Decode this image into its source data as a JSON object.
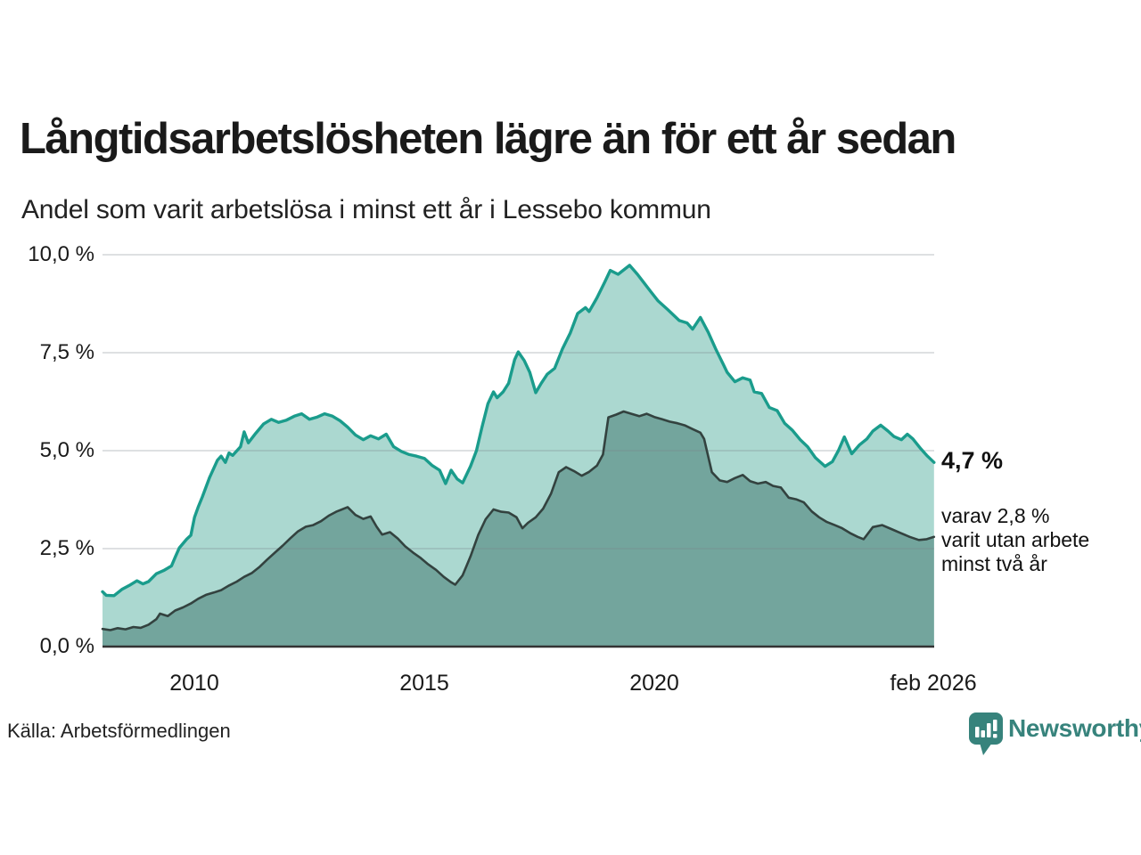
{
  "chart_data": {
    "type": "area",
    "title": "Långtidsarbetslösheten lägre än för ett år sedan",
    "subtitle": "Andel som varit arbetslösa i minst ett år i Lessebo kommun",
    "unit": "%",
    "grid_on": true,
    "grid_color": "#7d848c",
    "axis_color": "#333333",
    "x_axis": {
      "range": [
        2008.0,
        2026.083
      ],
      "ticks": [
        {
          "year": 2010,
          "label": "2010"
        },
        {
          "year": 2015,
          "label": "2015"
        },
        {
          "year": 2020,
          "label": "2020"
        },
        {
          "year": 2026.08,
          "label": "feb 2026"
        }
      ]
    },
    "y_axis": {
      "range": [
        0,
        10
      ],
      "ticks": [
        {
          "value": 10,
          "label": "10,0 %"
        },
        {
          "value": 7.5,
          "label": "7,5 %"
        },
        {
          "value": 5,
          "label": "5,0 %"
        },
        {
          "value": 2.5,
          "label": "2,5 %"
        },
        {
          "value": 0,
          "label": "0,0 %"
        }
      ]
    },
    "series": [
      {
        "name": "Arbetslösa minst ett år",
        "line_color": "#1a9c8c",
        "fill_color": "#abd8d0",
        "end_value": 4.7,
        "end_label": "4,7 %",
        "points": [
          [
            2008.0,
            1.4
          ],
          [
            2008.08,
            1.31
          ],
          [
            2008.25,
            1.3
          ],
          [
            2008.42,
            1.46
          ],
          [
            2008.58,
            1.56
          ],
          [
            2008.75,
            1.68
          ],
          [
            2008.88,
            1.6
          ],
          [
            2009.0,
            1.66
          ],
          [
            2009.17,
            1.86
          ],
          [
            2009.33,
            1.94
          ],
          [
            2009.5,
            2.06
          ],
          [
            2009.58,
            2.28
          ],
          [
            2009.67,
            2.52
          ],
          [
            2009.83,
            2.74
          ],
          [
            2009.92,
            2.84
          ],
          [
            2010.0,
            3.3
          ],
          [
            2010.08,
            3.56
          ],
          [
            2010.17,
            3.82
          ],
          [
            2010.33,
            4.32
          ],
          [
            2010.5,
            4.76
          ],
          [
            2010.58,
            4.86
          ],
          [
            2010.67,
            4.7
          ],
          [
            2010.75,
            4.94
          ],
          [
            2010.83,
            4.88
          ],
          [
            2011.0,
            5.1
          ],
          [
            2011.08,
            5.48
          ],
          [
            2011.17,
            5.2
          ],
          [
            2011.33,
            5.44
          ],
          [
            2011.5,
            5.68
          ],
          [
            2011.67,
            5.8
          ],
          [
            2011.83,
            5.72
          ],
          [
            2012.0,
            5.78
          ],
          [
            2012.17,
            5.88
          ],
          [
            2012.33,
            5.94
          ],
          [
            2012.5,
            5.8
          ],
          [
            2012.67,
            5.86
          ],
          [
            2012.83,
            5.94
          ],
          [
            2013.0,
            5.88
          ],
          [
            2013.17,
            5.76
          ],
          [
            2013.33,
            5.6
          ],
          [
            2013.5,
            5.4
          ],
          [
            2013.67,
            5.28
          ],
          [
            2013.83,
            5.38
          ],
          [
            2014.0,
            5.3
          ],
          [
            2014.17,
            5.42
          ],
          [
            2014.33,
            5.1
          ],
          [
            2014.5,
            4.98
          ],
          [
            2014.67,
            4.9
          ],
          [
            2014.83,
            4.86
          ],
          [
            2015.0,
            4.8
          ],
          [
            2015.17,
            4.62
          ],
          [
            2015.33,
            4.5
          ],
          [
            2015.46,
            4.16
          ],
          [
            2015.58,
            4.5
          ],
          [
            2015.71,
            4.28
          ],
          [
            2015.83,
            4.18
          ],
          [
            2016.0,
            4.6
          ],
          [
            2016.13,
            5.0
          ],
          [
            2016.25,
            5.6
          ],
          [
            2016.38,
            6.2
          ],
          [
            2016.5,
            6.5
          ],
          [
            2016.58,
            6.35
          ],
          [
            2016.71,
            6.5
          ],
          [
            2016.83,
            6.72
          ],
          [
            2016.96,
            7.32
          ],
          [
            2017.04,
            7.52
          ],
          [
            2017.17,
            7.3
          ],
          [
            2017.29,
            7.0
          ],
          [
            2017.42,
            6.48
          ],
          [
            2017.54,
            6.72
          ],
          [
            2017.67,
            6.95
          ],
          [
            2017.83,
            7.1
          ],
          [
            2018.0,
            7.6
          ],
          [
            2018.17,
            8.0
          ],
          [
            2018.33,
            8.5
          ],
          [
            2018.5,
            8.65
          ],
          [
            2018.58,
            8.55
          ],
          [
            2018.75,
            8.9
          ],
          [
            2018.92,
            9.3
          ],
          [
            2019.04,
            9.6
          ],
          [
            2019.21,
            9.5
          ],
          [
            2019.46,
            9.73
          ],
          [
            2019.63,
            9.5
          ],
          [
            2019.75,
            9.32
          ],
          [
            2019.92,
            9.06
          ],
          [
            2020.08,
            8.82
          ],
          [
            2020.29,
            8.6
          ],
          [
            2020.54,
            8.32
          ],
          [
            2020.71,
            8.26
          ],
          [
            2020.83,
            8.1
          ],
          [
            2021.0,
            8.4
          ],
          [
            2021.17,
            8.02
          ],
          [
            2021.33,
            7.6
          ],
          [
            2021.5,
            7.2
          ],
          [
            2021.58,
            7.0
          ],
          [
            2021.75,
            6.76
          ],
          [
            2021.92,
            6.86
          ],
          [
            2022.08,
            6.8
          ],
          [
            2022.17,
            6.5
          ],
          [
            2022.33,
            6.46
          ],
          [
            2022.5,
            6.1
          ],
          [
            2022.67,
            6.02
          ],
          [
            2022.83,
            5.7
          ],
          [
            2023.0,
            5.52
          ],
          [
            2023.17,
            5.28
          ],
          [
            2023.33,
            5.1
          ],
          [
            2023.5,
            4.82
          ],
          [
            2023.71,
            4.6
          ],
          [
            2023.87,
            4.72
          ],
          [
            2024.0,
            5.0
          ],
          [
            2024.13,
            5.35
          ],
          [
            2024.29,
            4.92
          ],
          [
            2024.46,
            5.15
          ],
          [
            2024.62,
            5.3
          ],
          [
            2024.75,
            5.5
          ],
          [
            2024.92,
            5.65
          ],
          [
            2025.08,
            5.5
          ],
          [
            2025.21,
            5.36
          ],
          [
            2025.37,
            5.28
          ],
          [
            2025.5,
            5.42
          ],
          [
            2025.62,
            5.3
          ],
          [
            2025.79,
            5.05
          ],
          [
            2025.92,
            4.88
          ],
          [
            2026.08,
            4.7
          ]
        ]
      },
      {
        "name": "Arbetslösa minst två år",
        "line_color": "#33423f",
        "fill_color": "#73a59d",
        "end_value": 2.8,
        "annotation_lines": [
          "varav 2,8 %",
          "varit utan arbete",
          "minst två år"
        ],
        "points": [
          [
            2008.0,
            0.45
          ],
          [
            2008.17,
            0.42
          ],
          [
            2008.33,
            0.47
          ],
          [
            2008.5,
            0.44
          ],
          [
            2008.67,
            0.5
          ],
          [
            2008.83,
            0.48
          ],
          [
            2009.0,
            0.56
          ],
          [
            2009.17,
            0.7
          ],
          [
            2009.25,
            0.84
          ],
          [
            2009.42,
            0.78
          ],
          [
            2009.58,
            0.92
          ],
          [
            2009.75,
            1.0
          ],
          [
            2009.92,
            1.1
          ],
          [
            2010.08,
            1.22
          ],
          [
            2010.25,
            1.32
          ],
          [
            2010.42,
            1.38
          ],
          [
            2010.58,
            1.44
          ],
          [
            2010.75,
            1.56
          ],
          [
            2010.92,
            1.66
          ],
          [
            2011.08,
            1.78
          ],
          [
            2011.25,
            1.88
          ],
          [
            2011.42,
            2.04
          ],
          [
            2011.58,
            2.22
          ],
          [
            2011.75,
            2.4
          ],
          [
            2011.92,
            2.58
          ],
          [
            2012.08,
            2.76
          ],
          [
            2012.25,
            2.94
          ],
          [
            2012.42,
            3.06
          ],
          [
            2012.58,
            3.1
          ],
          [
            2012.75,
            3.2
          ],
          [
            2012.92,
            3.34
          ],
          [
            2013.08,
            3.44
          ],
          [
            2013.25,
            3.52
          ],
          [
            2013.33,
            3.56
          ],
          [
            2013.5,
            3.36
          ],
          [
            2013.67,
            3.26
          ],
          [
            2013.83,
            3.32
          ],
          [
            2013.96,
            3.06
          ],
          [
            2014.08,
            2.86
          ],
          [
            2014.25,
            2.92
          ],
          [
            2014.42,
            2.76
          ],
          [
            2014.58,
            2.56
          ],
          [
            2014.75,
            2.4
          ],
          [
            2014.92,
            2.26
          ],
          [
            2015.08,
            2.1
          ],
          [
            2015.25,
            1.96
          ],
          [
            2015.42,
            1.78
          ],
          [
            2015.58,
            1.64
          ],
          [
            2015.67,
            1.58
          ],
          [
            2015.83,
            1.82
          ],
          [
            2016.0,
            2.3
          ],
          [
            2016.17,
            2.85
          ],
          [
            2016.33,
            3.25
          ],
          [
            2016.5,
            3.5
          ],
          [
            2016.67,
            3.44
          ],
          [
            2016.83,
            3.42
          ],
          [
            2017.0,
            3.3
          ],
          [
            2017.13,
            3.02
          ],
          [
            2017.25,
            3.16
          ],
          [
            2017.42,
            3.3
          ],
          [
            2017.58,
            3.52
          ],
          [
            2017.75,
            3.9
          ],
          [
            2017.92,
            4.45
          ],
          [
            2018.08,
            4.58
          ],
          [
            2018.25,
            4.48
          ],
          [
            2018.42,
            4.36
          ],
          [
            2018.58,
            4.46
          ],
          [
            2018.75,
            4.62
          ],
          [
            2018.88,
            4.9
          ],
          [
            2019.0,
            5.85
          ],
          [
            2019.17,
            5.92
          ],
          [
            2019.33,
            6.0
          ],
          [
            2019.5,
            5.94
          ],
          [
            2019.67,
            5.88
          ],
          [
            2019.83,
            5.94
          ],
          [
            2020.0,
            5.86
          ],
          [
            2020.17,
            5.8
          ],
          [
            2020.33,
            5.74
          ],
          [
            2020.5,
            5.7
          ],
          [
            2020.67,
            5.64
          ],
          [
            2020.83,
            5.55
          ],
          [
            2021.0,
            5.46
          ],
          [
            2021.08,
            5.3
          ],
          [
            2021.25,
            4.45
          ],
          [
            2021.42,
            4.24
          ],
          [
            2021.58,
            4.2
          ],
          [
            2021.75,
            4.3
          ],
          [
            2021.92,
            4.38
          ],
          [
            2022.08,
            4.22
          ],
          [
            2022.25,
            4.16
          ],
          [
            2022.42,
            4.2
          ],
          [
            2022.58,
            4.1
          ],
          [
            2022.75,
            4.06
          ],
          [
            2022.92,
            3.8
          ],
          [
            2023.08,
            3.76
          ],
          [
            2023.25,
            3.68
          ],
          [
            2023.42,
            3.45
          ],
          [
            2023.58,
            3.3
          ],
          [
            2023.75,
            3.18
          ],
          [
            2023.92,
            3.1
          ],
          [
            2024.08,
            3.02
          ],
          [
            2024.25,
            2.9
          ],
          [
            2024.42,
            2.8
          ],
          [
            2024.55,
            2.74
          ],
          [
            2024.75,
            3.05
          ],
          [
            2024.95,
            3.1
          ],
          [
            2025.15,
            3.0
          ],
          [
            2025.35,
            2.9
          ],
          [
            2025.55,
            2.8
          ],
          [
            2025.75,
            2.72
          ],
          [
            2025.92,
            2.74
          ],
          [
            2026.08,
            2.8
          ]
        ]
      }
    ]
  },
  "footer": {
    "source": "Källa: Arbetsförmedlingen",
    "brand_name": "Newsworthy",
    "brand_color": "#37837c"
  }
}
